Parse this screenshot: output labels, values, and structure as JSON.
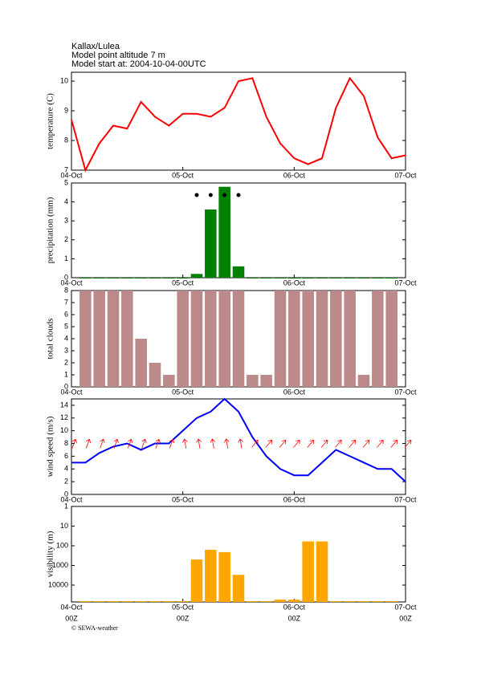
{
  "header": {
    "location": "Kallax/Lulea",
    "altitude": "Model point altitude  7 m",
    "model_start": "Model start at: 2004-10-04-00UTC"
  },
  "footer": "© SEWA-weather",
  "chart_data": [
    {
      "type": "line",
      "y_label": "temperature (C)",
      "color": "#ff0000",
      "x": [
        0,
        3,
        6,
        9,
        12,
        15,
        18,
        21,
        24,
        27,
        30,
        33,
        36,
        39,
        42,
        45,
        48,
        51,
        54,
        57,
        60,
        63,
        66,
        69,
        72
      ],
      "values": [
        8.7,
        7.0,
        7.9,
        8.5,
        8.4,
        9.3,
        8.8,
        8.5,
        8.9,
        8.9,
        8.8,
        9.1,
        10.0,
        10.1,
        8.8,
        7.9,
        7.4,
        7.2,
        7.4,
        9.1,
        10.1,
        9.5,
        8.1,
        7.4,
        7.5
      ],
      "xlim": [
        0,
        72
      ],
      "xticks": [
        {
          "value": 0,
          "label": "04-Oct"
        },
        {
          "value": 24,
          "label": "05-Oct"
        },
        {
          "value": 48,
          "label": "06-Oct"
        },
        {
          "value": 72,
          "label": "07-Oct"
        }
      ],
      "ylim": [
        7,
        10.3
      ],
      "yticks": [
        7,
        8,
        9,
        10
      ]
    },
    {
      "type": "bar",
      "y_label": "precipitation (mm)",
      "color": "#008000",
      "symbols": true,
      "x": [
        3,
        6,
        9,
        12,
        15,
        18,
        21,
        24,
        27,
        30,
        33,
        36,
        39,
        42,
        45,
        48,
        51,
        54,
        57,
        60,
        63,
        66,
        69
      ],
      "values": [
        0,
        0,
        0,
        0,
        0,
        0,
        0,
        0,
        0.2,
        3.6,
        4.8,
        0.6,
        0,
        0,
        0,
        0,
        0,
        0,
        0,
        0,
        0,
        0,
        0
      ],
      "xlim": [
        0,
        72
      ],
      "xticks": [
        {
          "value": 0,
          "label": "04-Oct"
        },
        {
          "value": 24,
          "label": "05-Oct"
        },
        {
          "value": 48,
          "label": "06-Oct"
        },
        {
          "value": 72,
          "label": "07-Oct"
        }
      ],
      "ylim": [
        0,
        5
      ],
      "yticks": [
        0,
        1,
        2,
        3,
        4,
        5
      ]
    },
    {
      "type": "bar",
      "y_label": "total clouds",
      "color": "#bc8a8a",
      "x": [
        3,
        6,
        9,
        12,
        15,
        18,
        21,
        24,
        27,
        30,
        33,
        36,
        39,
        42,
        45,
        48,
        51,
        54,
        57,
        60,
        63,
        66,
        69
      ],
      "values": [
        8,
        8,
        8,
        8,
        4,
        2,
        1,
        8,
        8,
        8,
        8,
        8,
        1,
        1,
        8,
        8,
        8,
        8,
        8,
        8,
        1,
        8,
        8
      ],
      "xlim": [
        0,
        72
      ],
      "xticks": [
        {
          "value": 0,
          "label": "04-Oct"
        },
        {
          "value": 24,
          "label": "05-Oct"
        },
        {
          "value": 48,
          "label": "06-Oct"
        },
        {
          "value": 72,
          "label": "07-Oct"
        }
      ],
      "ylim": [
        0,
        8
      ],
      "yticks": [
        0,
        1,
        2,
        3,
        4,
        5,
        6,
        7,
        8
      ]
    },
    {
      "type": "line",
      "y_label": "wind speed (m/s)",
      "color": "#0000ff",
      "arrow_color": "#ff0000",
      "x": [
        0,
        3,
        6,
        9,
        12,
        15,
        18,
        21,
        24,
        27,
        30,
        33,
        36,
        39,
        42,
        45,
        48,
        51,
        54,
        57,
        60,
        63,
        66,
        69,
        72
      ],
      "values": [
        5,
        5,
        6.5,
        7.5,
        8,
        7,
        8,
        8,
        10,
        12,
        13,
        15,
        13,
        9,
        6,
        4,
        3,
        3,
        5,
        7,
        6,
        5,
        4,
        4,
        2
      ],
      "directions": [
        20,
        20,
        20,
        20,
        20,
        20,
        20,
        20,
        350,
        350,
        350,
        350,
        350,
        40,
        40,
        40,
        40,
        40,
        40,
        40,
        40,
        40,
        40,
        40,
        40
      ],
      "xlim": [
        0,
        72
      ],
      "xticks": [
        {
          "value": 0,
          "label": "04-Oct"
        },
        {
          "value": 24,
          "label": "05-Oct"
        },
        {
          "value": 48,
          "label": "06-Oct"
        },
        {
          "value": 72,
          "label": "07-Oct"
        }
      ],
      "ylim": [
        0,
        15
      ],
      "yticks": [
        0,
        2,
        4,
        6,
        8,
        10,
        12,
        14
      ]
    },
    {
      "type": "bar",
      "y_label": "visibility (m)",
      "color": "#ffa500",
      "log_scale": true,
      "x": [
        3,
        6,
        9,
        12,
        15,
        18,
        21,
        24,
        27,
        30,
        33,
        36,
        39,
        42,
        45,
        48,
        51,
        54,
        57,
        60,
        63,
        66,
        69
      ],
      "values": [
        65000,
        65000,
        65000,
        65000,
        65000,
        65000,
        65000,
        65000,
        500,
        160,
        210,
        3000,
        65000,
        65000,
        55000,
        55000,
        60,
        60,
        65000,
        65000,
        65000,
        65000,
        65000
      ],
      "xlim": [
        0,
        72
      ],
      "xticks": [
        {
          "value": 0,
          "label": "04-Oct"
        },
        {
          "value": 24,
          "label": "05-Oct"
        },
        {
          "value": 48,
          "label": "06-Oct"
        },
        {
          "value": 72,
          "label": "07-Oct"
        }
      ],
      "xtick_sublabels": [
        "00Z",
        "00Z",
        "00Z",
        "00Z"
      ],
      "ylim": [
        72000,
        1
      ],
      "yticks": [
        1,
        10,
        100,
        1000,
        10000
      ]
    }
  ]
}
